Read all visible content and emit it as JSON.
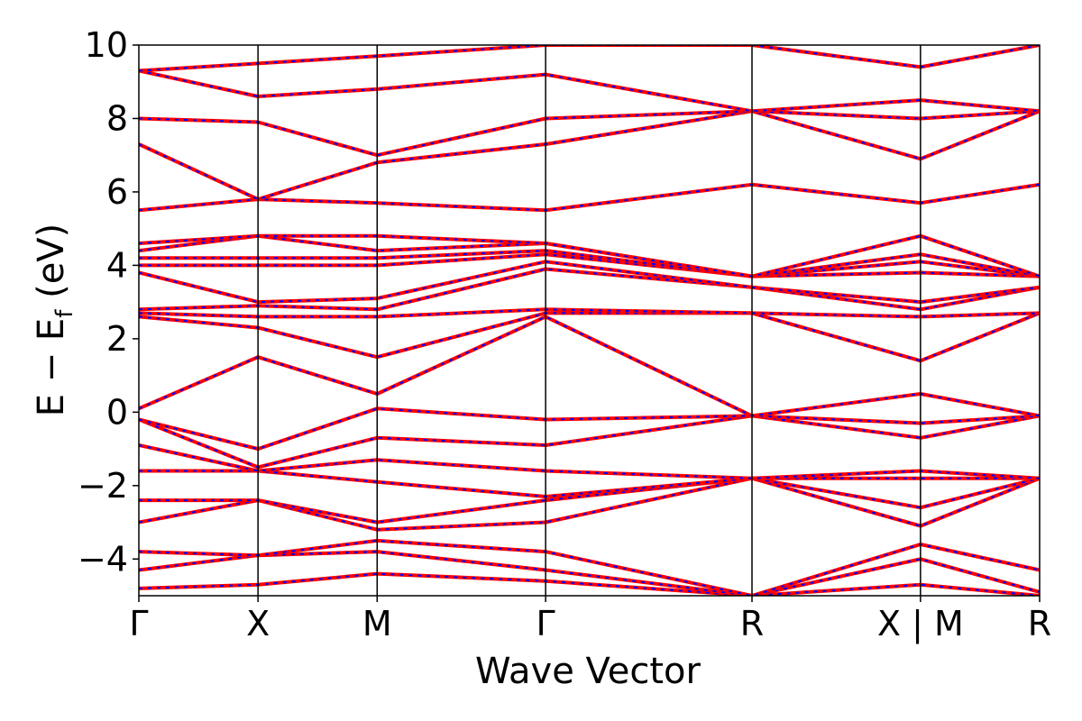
{
  "chart_data": {
    "type": "line",
    "title": "",
    "xlabel": "Wave Vector",
    "ylabel": "E − E",
    "ylabel_sub": "f",
    "ylabel_unit": " (eV)",
    "ylim": [
      -5,
      10
    ],
    "yticks": [
      -4,
      -2,
      0,
      2,
      4,
      6,
      8,
      10
    ],
    "ytick_labels": [
      "−4",
      "−2",
      "0",
      "2",
      "4",
      "6",
      "8",
      "10"
    ],
    "kpoint_labels": [
      "Γ",
      "X",
      "M",
      "Γ",
      "R",
      "X | M",
      "R"
    ],
    "kpoint_positions": [
      0,
      0.5,
      1.0,
      1.7071,
      2.5731,
      3.2802,
      3.7802
    ],
    "grid": false,
    "legend": "none",
    "line_colors": {
      "band_solid": "#ff0000",
      "band_dashed": "#0000ff",
      "kpoint_line": "#000000"
    },
    "series": [
      {
        "x": [
          0,
          0.5,
          1.0,
          1.7071,
          2.5731,
          3.2802,
          3.7802
        ],
        "y": [
          -4.8,
          -4.7,
          -4.4,
          -4.6,
          -5.0,
          -4.7,
          -5.0
        ]
      },
      {
        "x": [
          0,
          0.5,
          1.0,
          1.7071,
          2.5731,
          3.2802,
          3.7802
        ],
        "y": [
          -4.3,
          -3.9,
          -3.8,
          -4.3,
          -5.0,
          -4.0,
          -4.9
        ]
      },
      {
        "x": [
          0,
          0.5,
          1.0,
          1.7071,
          2.5731,
          3.2802,
          3.7802
        ],
        "y": [
          -3.8,
          -3.9,
          -3.5,
          -3.8,
          -5.0,
          -3.6,
          -4.3
        ]
      },
      {
        "x": [
          0,
          0.5,
          1.0,
          1.7071,
          2.5731,
          3.2802,
          3.7802
        ],
        "y": [
          -3.0,
          -2.4,
          -3.2,
          -3.0,
          -1.8,
          -3.1,
          -1.8
        ]
      },
      {
        "x": [
          0,
          0.5,
          1.0,
          1.7071,
          2.5731,
          3.2802,
          3.7802
        ],
        "y": [
          -2.4,
          -2.4,
          -3.0,
          -2.4,
          -1.8,
          -2.6,
          -1.8
        ]
      },
      {
        "x": [
          0,
          0.5,
          1.0,
          1.7071,
          2.5731,
          3.2802,
          3.7802
        ],
        "y": [
          -1.6,
          -1.6,
          -1.9,
          -2.3,
          -1.8,
          -1.8,
          -1.8
        ]
      },
      {
        "x": [
          0,
          0.5,
          1.0,
          1.7071,
          2.5731,
          3.2802,
          3.7802
        ],
        "y": [
          -0.9,
          -1.6,
          -1.3,
          -1.6,
          -1.8,
          -1.6,
          -1.8
        ]
      },
      {
        "x": [
          0,
          0.5,
          1.0,
          1.7071,
          2.5731,
          3.2802,
          3.7802
        ],
        "y": [
          -0.2,
          -1.5,
          -0.7,
          -0.9,
          -0.1,
          -0.7,
          -0.1
        ]
      },
      {
        "x": [
          0,
          0.5,
          1.0,
          1.7071,
          2.5731,
          3.2802,
          3.7802
        ],
        "y": [
          -0.2,
          -1.0,
          0.1,
          -0.2,
          -0.1,
          -0.3,
          -0.1
        ]
      },
      {
        "x": [
          0,
          0.5,
          1.0,
          1.7071,
          2.5731,
          3.2802,
          3.7802
        ],
        "y": [
          0.1,
          1.5,
          0.5,
          2.6,
          -0.1,
          0.5,
          -0.1
        ]
      },
      {
        "x": [
          0,
          0.5,
          1.0,
          1.7071,
          2.5731,
          3.2802,
          3.7802
        ],
        "y": [
          2.6,
          2.3,
          1.5,
          2.7,
          2.7,
          1.4,
          2.7
        ]
      },
      {
        "x": [
          0,
          0.5,
          1.0,
          1.7071,
          2.5731,
          3.2802,
          3.7802
        ],
        "y": [
          2.7,
          2.6,
          2.6,
          2.8,
          2.7,
          2.6,
          2.7
        ]
      },
      {
        "x": [
          0,
          0.5,
          1.0,
          1.7071,
          2.5731,
          3.2802,
          3.7802
        ],
        "y": [
          2.8,
          2.9,
          2.8,
          3.9,
          3.4,
          2.8,
          3.4
        ]
      },
      {
        "x": [
          0,
          0.5,
          1.0,
          1.7071,
          2.5731,
          3.2802,
          3.7802
        ],
        "y": [
          3.8,
          3.0,
          3.1,
          4.1,
          3.4,
          3.0,
          3.4
        ]
      },
      {
        "x": [
          0,
          0.5,
          1.0,
          1.7071,
          2.5731,
          3.2802,
          3.7802
        ],
        "y": [
          4.0,
          4.0,
          4.0,
          4.3,
          3.7,
          3.8,
          3.7
        ]
      },
      {
        "x": [
          0,
          0.5,
          1.0,
          1.7071,
          2.5731,
          3.2802,
          3.7802
        ],
        "y": [
          4.2,
          4.2,
          4.2,
          4.4,
          3.7,
          4.1,
          3.7
        ]
      },
      {
        "x": [
          0,
          0.5,
          1.0,
          1.7071,
          2.5731,
          3.2802,
          3.7802
        ],
        "y": [
          4.4,
          4.8,
          4.4,
          4.6,
          3.7,
          4.3,
          3.7
        ]
      },
      {
        "x": [
          0,
          0.5,
          1.0,
          1.7071,
          2.5731,
          3.2802,
          3.7802
        ],
        "y": [
          4.6,
          4.8,
          4.8,
          4.6,
          3.7,
          4.8,
          3.7
        ]
      },
      {
        "x": [
          0,
          0.5,
          1.0,
          1.7071,
          2.5731,
          3.2802,
          3.7802
        ],
        "y": [
          5.5,
          5.8,
          5.7,
          5.5,
          6.2,
          5.7,
          6.2
        ]
      },
      {
        "x": [
          0,
          0.5,
          1.0,
          1.7071,
          2.5731,
          3.2802,
          3.7802
        ],
        "y": [
          7.3,
          5.8,
          6.8,
          7.3,
          8.2,
          6.9,
          8.2
        ]
      },
      {
        "x": [
          0,
          0.5,
          1.0,
          1.7071,
          2.5731,
          3.2802,
          3.7802
        ],
        "y": [
          8.0,
          7.9,
          7.0,
          8.0,
          8.2,
          8.0,
          8.2
        ]
      },
      {
        "x": [
          0,
          0.5,
          1.0,
          1.7071,
          2.5731,
          3.2802,
          3.7802
        ],
        "y": [
          9.3,
          8.6,
          8.8,
          9.2,
          8.2,
          8.5,
          8.2
        ]
      },
      {
        "x": [
          0,
          0.5,
          1.0,
          1.7071,
          2.5731,
          3.2802,
          3.7802
        ],
        "y": [
          9.3,
          9.5,
          9.7,
          10.0,
          10.0,
          9.4,
          10.0
        ]
      }
    ]
  }
}
